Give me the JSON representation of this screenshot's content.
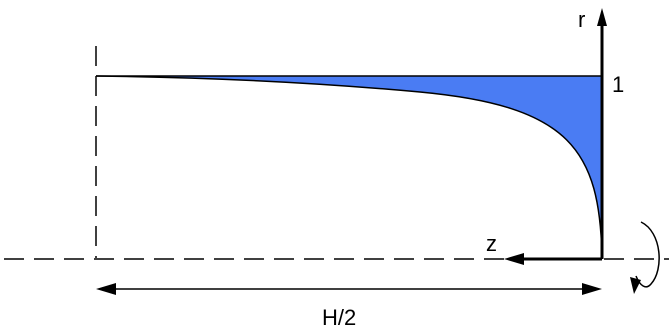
{
  "labels": {
    "r_axis": "r",
    "z_axis": "z",
    "radius_value": "1",
    "half_height": "H/2"
  },
  "colors": {
    "fill": "#4a7cf3",
    "stroke": "#000000",
    "background": "#ffffff"
  }
}
